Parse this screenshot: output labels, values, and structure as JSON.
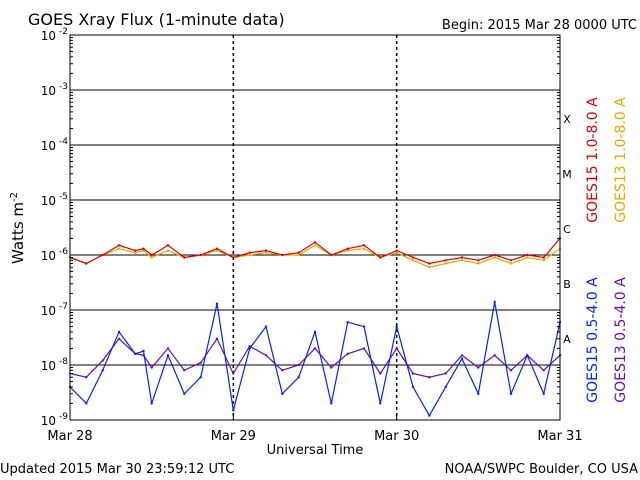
{
  "chart_data": {
    "type": "line",
    "title": "GOES Xray Flux (1-minute data)",
    "begin_label": "Begin:  2015 Mar 28 0000 UTC",
    "ylabel_main": "Watts m",
    "ylabel_exp": "-2",
    "xlabel": "Universal Time",
    "yscale": "log",
    "ylim": [
      1e-09,
      0.01
    ],
    "y_ticks": [
      {
        "mant": "10",
        "exp": "-2",
        "value": 0.01
      },
      {
        "mant": "10",
        "exp": "-3",
        "value": 0.001
      },
      {
        "mant": "10",
        "exp": "-4",
        "value": 0.0001
      },
      {
        "mant": "10",
        "exp": "-5",
        "value": 1e-05
      },
      {
        "mant": "10",
        "exp": "-6",
        "value": 1e-06
      },
      {
        "mant": "10",
        "exp": "-7",
        "value": 1e-07
      },
      {
        "mant": "10",
        "exp": "-8",
        "value": 1e-08
      },
      {
        "mant": "10",
        "exp": "-9",
        "value": 1e-09
      }
    ],
    "x_ticks": [
      "Mar 28",
      "Mar 29",
      "Mar 30",
      "Mar 31"
    ],
    "flare_classes": [
      {
        "label": "X",
        "value": 0.0003
      },
      {
        "label": "M",
        "value": 3e-05
      },
      {
        "label": "C",
        "value": 3e-06
      },
      {
        "label": "B",
        "value": 3e-07
      },
      {
        "label": "A",
        "value": 3e-08
      }
    ],
    "series": [
      {
        "name": "GOES13 0.5-4.0 A",
        "color": "#6a0dad",
        "x": [
          0,
          0.1,
          0.2,
          0.3,
          0.4,
          0.45,
          0.5,
          0.6,
          0.7,
          0.8,
          0.9,
          1.0,
          1.1,
          1.2,
          1.3,
          1.4,
          1.5,
          1.6,
          1.7,
          1.8,
          1.9,
          2.0,
          2.1,
          2.2,
          2.3,
          2.4,
          2.5,
          2.6,
          2.7,
          2.8,
          2.9,
          3.0
        ],
        "values": [
          7e-09,
          6e-09,
          1.2e-08,
          3e-08,
          1.6e-08,
          1.5e-08,
          9e-09,
          2e-08,
          8e-09,
          1.1e-08,
          3e-08,
          7e-09,
          2.2e-08,
          1.5e-08,
          8e-09,
          1e-08,
          2e-08,
          9e-09,
          1.6e-08,
          2e-08,
          7e-09,
          2e-08,
          7e-09,
          6e-09,
          7e-09,
          1.5e-08,
          9e-09,
          1.5e-08,
          8e-09,
          1.5e-08,
          8e-09,
          1.5e-08
        ]
      },
      {
        "name": "GOES15 0.5-4.0 A",
        "color": "#0022ff",
        "x": [
          0,
          0.1,
          0.2,
          0.3,
          0.4,
          0.45,
          0.5,
          0.6,
          0.7,
          0.8,
          0.9,
          1.0,
          1.1,
          1.2,
          1.3,
          1.4,
          1.5,
          1.6,
          1.7,
          1.8,
          1.9,
          2.0,
          2.1,
          2.2,
          2.3,
          2.4,
          2.5,
          2.6,
          2.7,
          2.8,
          2.9,
          3.0
        ],
        "values": [
          4e-09,
          2e-09,
          8e-09,
          4e-08,
          1.6e-08,
          1.8e-08,
          2e-09,
          1.5e-08,
          3e-09,
          6e-09,
          1.3e-07,
          1.5e-09,
          2e-08,
          5e-08,
          3e-09,
          6e-09,
          4e-08,
          2e-09,
          6e-08,
          5e-08,
          2e-09,
          5e-08,
          4e-09,
          1.2e-09,
          4e-09,
          1.3e-08,
          3e-09,
          1.4e-07,
          3e-09,
          1.5e-08,
          3e-09,
          6e-08
        ]
      },
      {
        "name": "GOES13 1.0-8.0 A",
        "color": "#e6a800",
        "x": [
          0,
          0.1,
          0.2,
          0.3,
          0.4,
          0.45,
          0.5,
          0.6,
          0.7,
          0.8,
          0.9,
          1.0,
          1.1,
          1.2,
          1.3,
          1.4,
          1.5,
          1.6,
          1.7,
          1.8,
          1.9,
          2.0,
          2.1,
          2.2,
          2.3,
          2.4,
          2.5,
          2.6,
          2.7,
          2.8,
          2.9,
          3.0
        ],
        "values": [
          9e-07,
          7e-07,
          1e-06,
          1.3e-06,
          1.1e-06,
          1.2e-06,
          9e-07,
          1.2e-06,
          9e-07,
          1e-06,
          1.2e-06,
          9e-07,
          1e-06,
          1.1e-06,
          1e-06,
          1e-06,
          1.5e-06,
          1e-06,
          1.2e-06,
          1.3e-06,
          9e-07,
          1.1e-06,
          8e-07,
          6e-07,
          7e-07,
          8e-07,
          7e-07,
          9e-07,
          7e-07,
          9e-07,
          8e-07,
          1.3e-06
        ]
      },
      {
        "name": "GOES15 1.0-8.0 A",
        "color": "#dd0000",
        "x": [
          0,
          0.1,
          0.2,
          0.3,
          0.4,
          0.45,
          0.5,
          0.6,
          0.7,
          0.8,
          0.9,
          1.0,
          1.1,
          1.2,
          1.3,
          1.4,
          1.5,
          1.6,
          1.7,
          1.8,
          1.9,
          2.0,
          2.1,
          2.2,
          2.3,
          2.4,
          2.5,
          2.6,
          2.7,
          2.8,
          2.9,
          3.0
        ],
        "values": [
          9e-07,
          7e-07,
          1e-06,
          1.5e-06,
          1.2e-06,
          1.3e-06,
          1e-06,
          1.5e-06,
          9e-07,
          1e-06,
          1.3e-06,
          9e-07,
          1.1e-06,
          1.2e-06,
          1e-06,
          1.1e-06,
          1.7e-06,
          1e-06,
          1.3e-06,
          1.5e-06,
          9e-07,
          1.2e-06,
          9e-07,
          7e-07,
          8e-07,
          9e-07,
          8e-07,
          1e-06,
          8e-07,
          1e-06,
          9e-07,
          2e-06
        ]
      }
    ],
    "footer_left": "Updated 2015 Mar 30 23:59:12 UTC",
    "footer_right": "NOAA/SWPC Boulder, CO USA"
  }
}
